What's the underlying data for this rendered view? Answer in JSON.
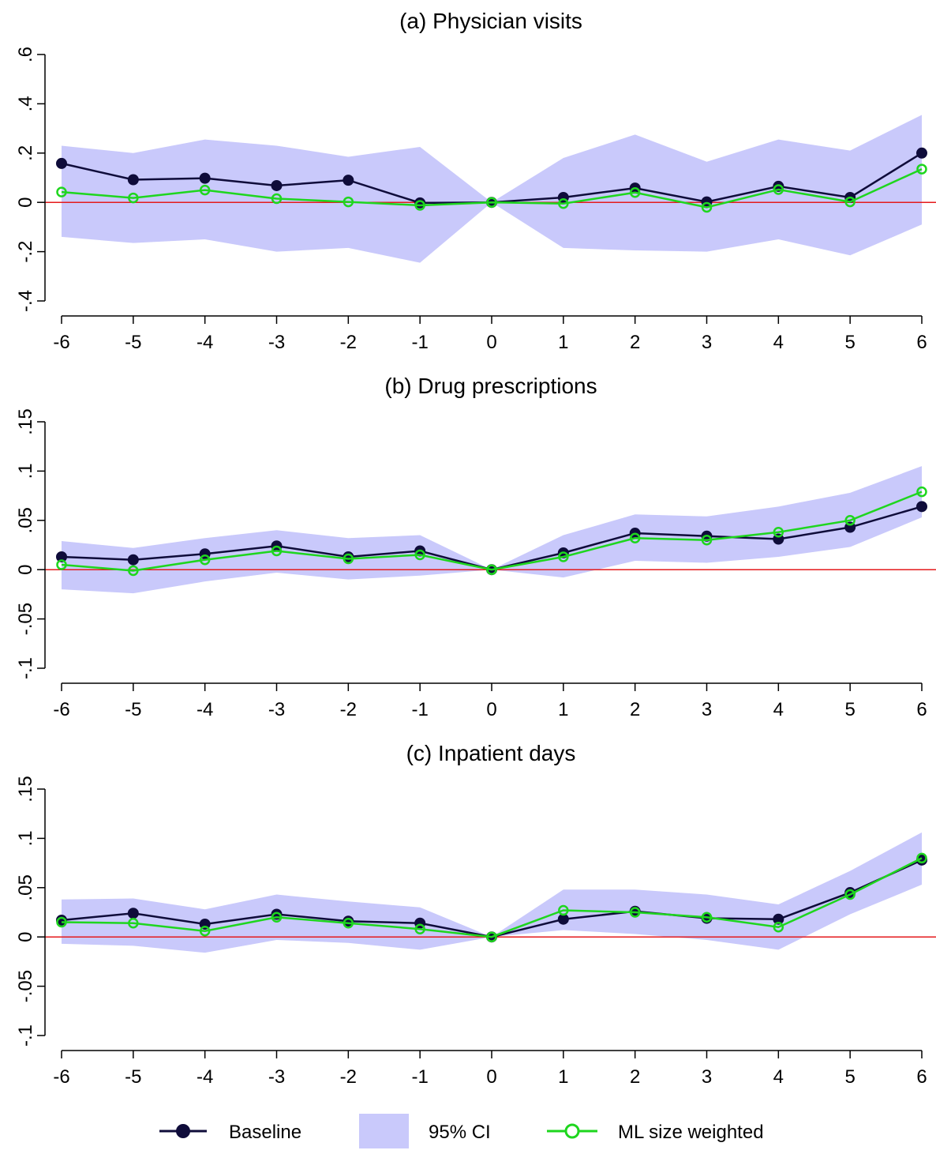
{
  "chart_data": [
    {
      "type": "line",
      "title": "(a) Physician visits",
      "xlabel": "",
      "ylabel": "",
      "x": [
        -6,
        -5,
        -4,
        -3,
        -2,
        -1,
        0,
        1,
        2,
        3,
        4,
        5,
        6
      ],
      "xlim": [
        -6,
        6
      ],
      "ylim": [
        -0.4,
        0.6
      ],
      "yticks": [
        -0.4,
        -0.2,
        0,
        0.2,
        0.4,
        0.6
      ],
      "ytick_labels": [
        "-.4",
        "-.2",
        "0",
        ".2",
        ".4",
        ".6"
      ],
      "xtick_labels": [
        "-6",
        "-5",
        "-4",
        "-3",
        "-2",
        "-1",
        "0",
        "1",
        "2",
        "3",
        "4",
        "5",
        "6"
      ],
      "grid": false,
      "reference_line": 0,
      "ci": {
        "lower": [
          -0.14,
          -0.165,
          -0.15,
          -0.2,
          -0.185,
          -0.245,
          0,
          -0.185,
          -0.195,
          -0.2,
          -0.15,
          -0.215,
          -0.09
        ],
        "upper": [
          0.23,
          0.2,
          0.255,
          0.23,
          0.185,
          0.225,
          0,
          0.18,
          0.275,
          0.165,
          0.255,
          0.21,
          0.355
        ]
      },
      "series": [
        {
          "name": "Baseline",
          "values": [
            0.158,
            0.092,
            0.098,
            0.068,
            0.09,
            -0.002,
            0,
            0.02,
            0.058,
            0.002,
            0.065,
            0.02,
            0.2
          ]
        },
        {
          "name": "ML size weighted",
          "values": [
            0.042,
            0.018,
            0.05,
            0.015,
            0.002,
            -0.012,
            0,
            -0.005,
            0.04,
            -0.02,
            0.052,
            0.002,
            0.135
          ]
        }
      ]
    },
    {
      "type": "line",
      "title": "(b) Drug prescriptions",
      "xlabel": "",
      "ylabel": "",
      "x": [
        -6,
        -5,
        -4,
        -3,
        -2,
        -1,
        0,
        1,
        2,
        3,
        4,
        5,
        6
      ],
      "xlim": [
        -6,
        6
      ],
      "ylim": [
        -0.1,
        0.15
      ],
      "yticks": [
        -0.1,
        -0.05,
        0,
        0.05,
        0.1,
        0.15
      ],
      "ytick_labels": [
        "-.1",
        "-.05",
        "0",
        ".05",
        ".1",
        ".15"
      ],
      "xtick_labels": [
        "-6",
        "-5",
        "-4",
        "-3",
        "-2",
        "-1",
        "0",
        "1",
        "2",
        "3",
        "4",
        "5",
        "6"
      ],
      "grid": false,
      "reference_line": 0,
      "ci": {
        "lower": [
          -0.02,
          -0.024,
          -0.012,
          -0.003,
          -0.01,
          -0.006,
          0,
          -0.008,
          0.009,
          0.007,
          0.013,
          0.023,
          0.053
        ],
        "upper": [
          0.029,
          0.022,
          0.032,
          0.04,
          0.032,
          0.035,
          0,
          0.035,
          0.056,
          0.054,
          0.064,
          0.078,
          0.105
        ]
      },
      "series": [
        {
          "name": "Baseline",
          "values": [
            0.013,
            0.01,
            0.016,
            0.024,
            0.013,
            0.019,
            0,
            0.017,
            0.037,
            0.034,
            0.031,
            0.043,
            0.064
          ]
        },
        {
          "name": "ML size weighted",
          "values": [
            0.005,
            -0.001,
            0.01,
            0.019,
            0.011,
            0.015,
            0,
            0.013,
            0.032,
            0.03,
            0.038,
            0.05,
            0.079
          ]
        }
      ]
    },
    {
      "type": "line",
      "title": "(c) Inpatient days",
      "xlabel": "",
      "ylabel": "",
      "x": [
        -6,
        -5,
        -4,
        -3,
        -2,
        -1,
        0,
        1,
        2,
        3,
        4,
        5,
        6
      ],
      "xlim": [
        -6,
        6
      ],
      "ylim": [
        -0.1,
        0.15
      ],
      "yticks": [
        -0.1,
        -0.05,
        0,
        0.05,
        0.1,
        0.15
      ],
      "ytick_labels": [
        "-.1",
        "-.05",
        "0",
        ".05",
        ".1",
        ".15"
      ],
      "xtick_labels": [
        "-6",
        "-5",
        "-4",
        "-3",
        "-2",
        "-1",
        "0",
        "1",
        "2",
        "3",
        "4",
        "5",
        "6"
      ],
      "grid": false,
      "reference_line": 0,
      "ci": {
        "lower": [
          -0.007,
          -0.009,
          -0.016,
          -0.003,
          -0.006,
          -0.013,
          0,
          0.007,
          0.003,
          -0.003,
          -0.013,
          0.023,
          0.053
        ],
        "upper": [
          0.038,
          0.039,
          0.028,
          0.043,
          0.036,
          0.03,
          0,
          0.048,
          0.048,
          0.043,
          0.033,
          0.067,
          0.106
        ]
      },
      "series": [
        {
          "name": "Baseline",
          "values": [
            0.017,
            0.024,
            0.013,
            0.023,
            0.016,
            0.014,
            0,
            0.018,
            0.026,
            0.019,
            0.018,
            0.045,
            0.078
          ]
        },
        {
          "name": "ML size weighted",
          "values": [
            0.015,
            0.014,
            0.006,
            0.02,
            0.014,
            0.008,
            0,
            0.027,
            0.025,
            0.02,
            0.01,
            0.043,
            0.08
          ]
        }
      ]
    }
  ],
  "legend": {
    "placement": "bottom",
    "items": [
      {
        "key": "baseline",
        "label": "Baseline"
      },
      {
        "key": "ci",
        "label": "95% CI"
      },
      {
        "key": "ml",
        "label": "ML size weighted"
      }
    ]
  },
  "colors": {
    "baseline": "#0f0c3a",
    "ml": "#1ed61e",
    "ci": "#c9c9fb",
    "reference": "#e41a1c",
    "axis": "#000000"
  }
}
